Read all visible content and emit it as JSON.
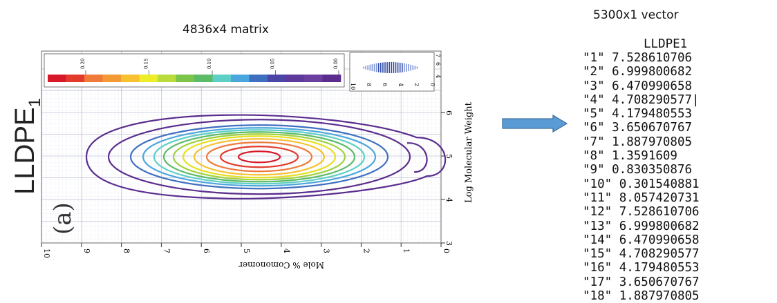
{
  "left_title": "4836x4 matrix",
  "right_title": "5300x1 vector",
  "side_label": {
    "main": "LLDPE",
    "sub": "1"
  },
  "panel_label": "(a)",
  "plot": {
    "x_axis_label": "Mole % Comonomer",
    "y_axis_label": "Log Molecular Weight",
    "x_ticks": [
      "10",
      "9",
      "8",
      "7",
      "6",
      "5",
      "4",
      "3",
      "2",
      "1",
      "0"
    ],
    "y_ticks": [
      "3",
      "4",
      "5",
      "6"
    ],
    "colorbar_ticks": [
      "0.20",
      "0.15",
      "0.10",
      "0.05",
      "0.00"
    ],
    "colorbar_colors": [
      "#d7192a",
      "#e23a2b",
      "#ef7a3a",
      "#f49a35",
      "#f7c130",
      "#eded2a",
      "#b9dc3c",
      "#7cc54a",
      "#5bbb66",
      "#5ecfc6",
      "#4aa6de",
      "#3f6fc0",
      "#4b45a6",
      "#5e3a9c",
      "#6b3f9f",
      "#5a2d8e"
    ],
    "inset_x_ticks": [
      "10",
      "8",
      "6",
      "4",
      "2",
      "0"
    ],
    "inset_y_ticks": [
      "7",
      "6",
      "4"
    ]
  },
  "arrow_color": "#5b9bd5",
  "vector": {
    "header": "LLDPE1",
    "rows": [
      {
        "idx": "\"1\"",
        "val": "7.528610706"
      },
      {
        "idx": "\"2\"",
        "val": "6.999800682"
      },
      {
        "idx": "\"3\"",
        "val": "6.470990658"
      },
      {
        "idx": "\"4\"",
        "val": "4.708290577|"
      },
      {
        "idx": "\"5\"",
        "val": "4.179480553"
      },
      {
        "idx": "\"6\"",
        "val": "3.650670767"
      },
      {
        "idx": "\"7\"",
        "val": "1.887970805"
      },
      {
        "idx": "\"8\"",
        "val": "1.3591609"
      },
      {
        "idx": "\"9\"",
        "val": "0.830350876"
      },
      {
        "idx": "\"10\"",
        "val": "0.301540881"
      },
      {
        "idx": "\"11\"",
        "val": "8.057420731"
      },
      {
        "idx": "\"12\"",
        "val": "7.528610706"
      },
      {
        "idx": "\"13\"",
        "val": "6.999800682"
      },
      {
        "idx": "\"14\"",
        "val": "6.470990658"
      },
      {
        "idx": "\"15\"",
        "val": "4.708290577"
      },
      {
        "idx": "\"16\"",
        "val": "4.179480553"
      },
      {
        "idx": "\"17\"",
        "val": "3.650670767"
      },
      {
        "idx": "\"18\"",
        "val": "1.887970805"
      }
    ]
  }
}
